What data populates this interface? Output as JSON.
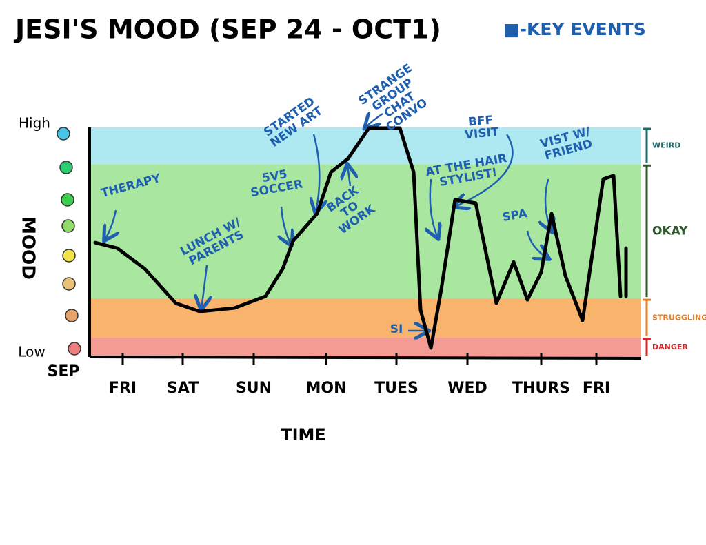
{
  "chart_data": {
    "type": "line",
    "title": "JESI'S MOOD (SEP 24 - OCT1)",
    "legend": "■-KEY EVENTS",
    "legend_color": "#1f5fb0",
    "x_label": "TIME",
    "y_label": "MOOD",
    "x_start_label": "SEP",
    "y_high_label": "High",
    "y_low_label": "Low",
    "xlim": [
      0,
      8
    ],
    "ylim": [
      0,
      10
    ],
    "xticks": [
      {
        "value": 0.48,
        "label": "FRI"
      },
      {
        "value": 1.35,
        "label": "SAT"
      },
      {
        "value": 2.38,
        "label": "SUN"
      },
      {
        "value": 3.43,
        "label": "MON"
      },
      {
        "value": 4.45,
        "label": "TUES"
      },
      {
        "value": 5.48,
        "label": "WED"
      },
      {
        "value": 6.55,
        "label": "THURS"
      },
      {
        "value": 7.35,
        "label": "FRI"
      }
    ],
    "bands": [
      {
        "name": "DANGER",
        "from": 0,
        "to": 0.85,
        "color": "#f49b93",
        "label_color": "#d62828"
      },
      {
        "name": "STRUGGLING",
        "from": 0.85,
        "to": 2.55,
        "color": "#f8b36c",
        "label_color": "#e67e22"
      },
      {
        "name": "OKAY",
        "from": 2.55,
        "to": 8.4,
        "color": "#a9e6a0",
        "label_color": "#2e5a2e"
      },
      {
        "name": "WEIRD",
        "from": 8.4,
        "to": 10,
        "color": "#aee8f1",
        "label_color": "#1e6b6b"
      }
    ],
    "series": [
      {
        "name": "Mood",
        "color": "#000000",
        "x": [
          0.08,
          0.4,
          0.8,
          1.25,
          1.6,
          2.1,
          2.55,
          2.8,
          2.95,
          3.3,
          3.5,
          3.75,
          4.05,
          4.5,
          4.7,
          4.8,
          4.95,
          5.1,
          5.3,
          5.6,
          5.9,
          6.15,
          6.35,
          6.55,
          6.7,
          6.9,
          7.15,
          7.45,
          7.6,
          7.7,
          null,
          7.78,
          7.78
        ],
        "values": [
          4.98,
          4.74,
          3.84,
          2.34,
          1.98,
          2.13,
          2.64,
          3.84,
          5.05,
          6.25,
          8.05,
          8.65,
          9.97,
          9.97,
          8.05,
          2.04,
          0.39,
          2.94,
          6.85,
          6.7,
          2.34,
          4.14,
          2.49,
          3.69,
          6.25,
          3.54,
          1.59,
          7.75,
          7.9,
          2.64,
          null,
          2.64,
          4.74
        ]
      }
    ],
    "annotations": [
      "THERAPY",
      "LUNCH W/ PARENTS",
      "5V5 SOCCER",
      "STARTED NEW ART",
      "BACK TO WORK",
      "STRANGE GROUP CHAT CONVO",
      "AT THE HAIR STYLIST!",
      "BFF VISIT",
      "VIST W/ FRIEND",
      "SPA",
      "SI"
    ]
  }
}
